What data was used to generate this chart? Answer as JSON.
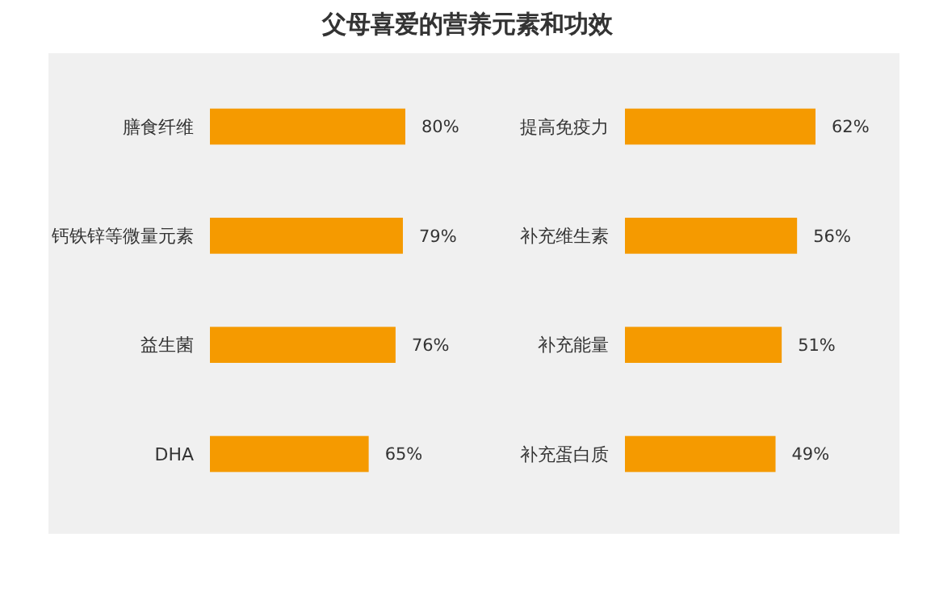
{
  "chart_data": [
    {
      "type": "bar",
      "orientation": "horizontal",
      "title": "父母喜爱的营养元素和功效",
      "categories": [
        "膳食纤维",
        "钙铁锌等微量元素",
        "益生菌",
        "DHA"
      ],
      "values": [
        80,
        79,
        76,
        65
      ],
      "value_labels": [
        "80%",
        "79%",
        "76%",
        "65%"
      ],
      "color": "#f59a00"
    },
    {
      "type": "bar",
      "orientation": "horizontal",
      "categories": [
        "提高免疫力",
        "补充维生素",
        "补充能量",
        "补充蛋白质"
      ],
      "values": [
        62,
        56,
        51,
        49
      ],
      "value_labels": [
        "62%",
        "56%",
        "51%",
        "49%"
      ],
      "color": "#f59a00"
    }
  ]
}
